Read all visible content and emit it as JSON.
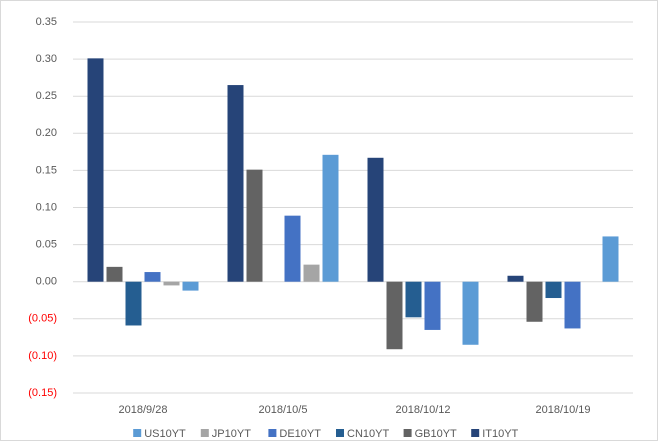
{
  "chart_data": {
    "type": "bar",
    "categories": [
      "2018/9/28",
      "2018/10/5",
      "2018/10/12",
      "2018/10/19"
    ],
    "series": [
      {
        "name": "US10YT",
        "color": "#5b9bd5",
        "values": [
          -0.012,
          0.171,
          -0.085,
          0.061
        ]
      },
      {
        "name": "JP10YT",
        "color": "#a5a5a5",
        "values": [
          -0.005,
          0.023,
          null,
          null
        ]
      },
      {
        "name": "DE10YT",
        "color": "#4472c4",
        "values": [
          0.013,
          0.089,
          -0.065,
          -0.063
        ]
      },
      {
        "name": "CN10YT",
        "color": "#255e91",
        "values": [
          -0.059,
          null,
          -0.048,
          -0.022
        ]
      },
      {
        "name": "GB10YT",
        "color": "#636363",
        "values": [
          0.02,
          0.151,
          -0.091,
          -0.054
        ]
      },
      {
        "name": "IT10YT",
        "color": "#264478",
        "values": [
          0.301,
          0.265,
          0.167,
          0.008
        ]
      }
    ],
    "ylim": [
      -0.15,
      0.35
    ],
    "yticks": [
      {
        "value": -0.15,
        "label": "(0.15)"
      },
      {
        "value": -0.1,
        "label": "(0.10)"
      },
      {
        "value": -0.05,
        "label": "(0.05)"
      },
      {
        "value": 0,
        "label": "0.00"
      },
      {
        "value": 0.05,
        "label": "0.05"
      },
      {
        "value": 0.1,
        "label": "0.10"
      },
      {
        "value": 0.15,
        "label": "0.15"
      },
      {
        "value": 0.2,
        "label": "0.20"
      },
      {
        "value": 0.25,
        "label": "0.25"
      },
      {
        "value": 0.3,
        "label": "0.30"
      },
      {
        "value": 0.35,
        "label": "0.35"
      }
    ],
    "negative_tick_color": "#ff0000",
    "grid": true,
    "legend": "bottom"
  }
}
